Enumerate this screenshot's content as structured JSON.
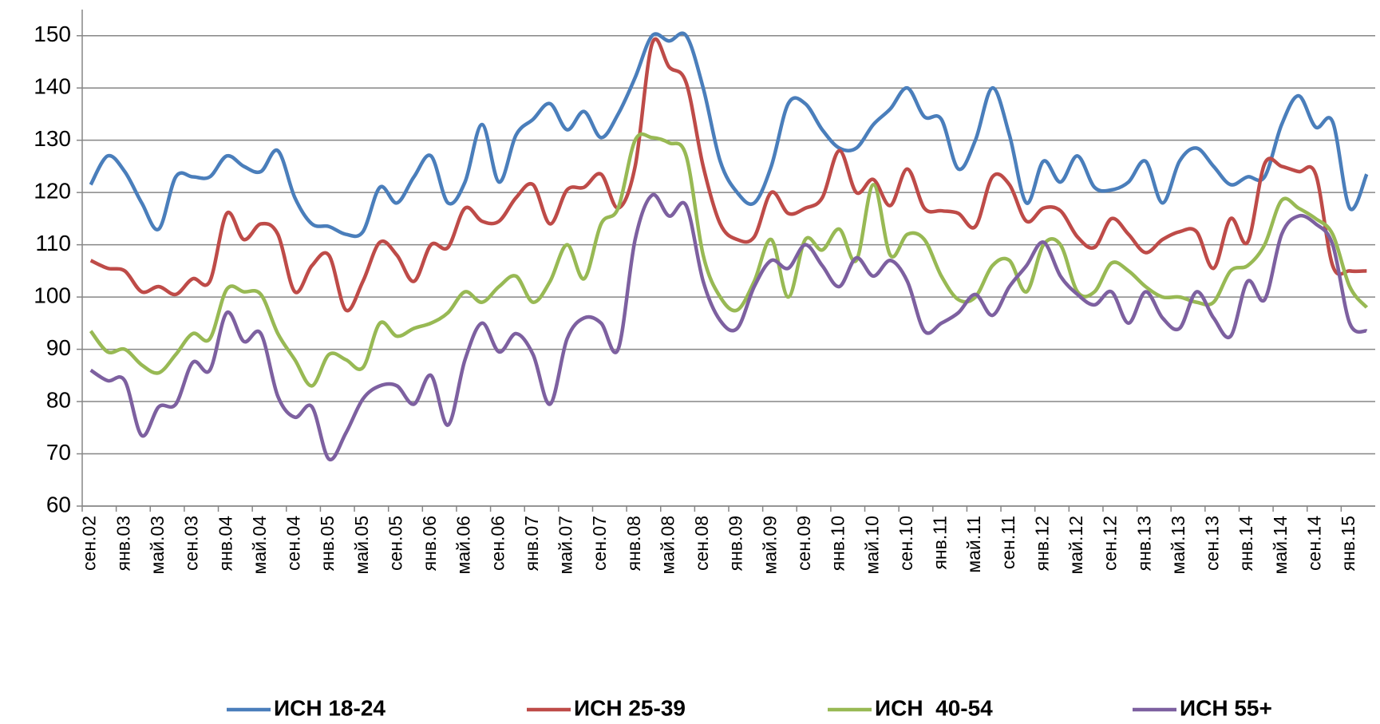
{
  "chart_data": {
    "type": "line",
    "categories": [
      "сен.02",
      null,
      "янв.03",
      null,
      "май.03",
      null,
      "сен.03",
      null,
      "янв.04",
      null,
      "май.04",
      null,
      "сен.04",
      null,
      "янв.05",
      null,
      "май.05",
      null,
      "сен.05",
      null,
      "янв.06",
      null,
      "май.06",
      null,
      "сен.06",
      null,
      "янв.07",
      null,
      "май.07",
      null,
      "сен.07",
      null,
      "янв.08",
      null,
      "май.08",
      null,
      "сен.08",
      null,
      "янв.09",
      null,
      "май.09",
      null,
      "сен.09",
      null,
      "янв.10",
      null,
      "май.10",
      null,
      "сен.10",
      null,
      "янв.11",
      null,
      "май.11",
      null,
      "сен.11",
      null,
      "янв.12",
      null,
      "май.12",
      null,
      "сен.12",
      null,
      "янв.13",
      null,
      "май.13",
      null,
      "сен.13",
      null,
      "янв.14",
      null,
      "май.14",
      null,
      "сен.14",
      null,
      "янв.15",
      null
    ],
    "series": [
      {
        "name": "ИСН 18-24",
        "color": "#4a7ebb",
        "values": [
          121.5,
          127,
          124,
          118,
          113,
          123,
          123,
          123,
          127,
          125,
          124,
          128,
          119,
          114,
          113.5,
          112,
          112.5,
          121,
          118,
          123,
          127,
          118,
          122,
          133,
          122,
          131,
          134,
          137,
          132,
          135.5,
          130.5,
          135,
          142,
          150,
          149,
          150,
          140,
          126,
          120,
          118,
          125,
          137,
          137,
          132,
          128.5,
          128.5,
          133,
          136,
          140,
          134.5,
          134,
          124.5,
          130,
          140,
          131,
          118,
          126,
          122,
          127,
          121,
          120.5,
          122,
          126,
          118,
          126,
          128.5,
          125,
          121.5,
          123,
          123,
          133,
          138.5,
          132.5,
          133.5,
          117,
          123.5
        ]
      },
      {
        "name": "ИСН 25-39",
        "color": "#be4b48",
        "values": [
          107,
          105.5,
          105,
          101,
          102,
          100.5,
          103.5,
          103,
          116,
          111,
          114,
          112,
          101,
          106,
          108,
          97.5,
          103,
          110.5,
          108,
          103,
          110,
          109.5,
          117,
          114.5,
          114.5,
          119,
          121.5,
          114,
          120.5,
          121,
          123.5,
          117,
          125,
          148.5,
          144,
          141,
          125,
          114,
          111,
          111.5,
          120,
          116,
          117,
          119,
          128,
          120,
          122.5,
          117.5,
          124.5,
          117,
          116.5,
          116,
          113.5,
          123,
          121.5,
          114.5,
          117,
          116.5,
          111.5,
          109.5,
          115,
          112,
          108.5,
          111,
          112.5,
          112.5,
          105.5,
          115,
          110.5,
          125.5,
          125,
          124,
          123.5,
          106,
          105,
          105
        ]
      },
      {
        "name": "ИСН  40-54",
        "color": "#98b954",
        "values": [
          93.5,
          89.5,
          90,
          87,
          85.5,
          89,
          93,
          92,
          101.5,
          101,
          100.5,
          93,
          88,
          83,
          89,
          88,
          86.5,
          95,
          92.5,
          94,
          95,
          97,
          101,
          99,
          102,
          104,
          99,
          103,
          110,
          103.5,
          114,
          117,
          130,
          130.5,
          129.5,
          127,
          108,
          100,
          97.5,
          103,
          111,
          100,
          111,
          109,
          113,
          107,
          121.5,
          108,
          112,
          111,
          104,
          99.5,
          100,
          106,
          107,
          101,
          110,
          110,
          101,
          101,
          106.5,
          105,
          102,
          100,
          100,
          99,
          99,
          105,
          106,
          110,
          118.5,
          117,
          115,
          112,
          102,
          98
        ]
      },
      {
        "name": "ИСН 55+",
        "color": "#7d60a0",
        "values": [
          86,
          84,
          84,
          73.5,
          79,
          79.5,
          87.5,
          86,
          97,
          91.5,
          93,
          81,
          77,
          79,
          69,
          74,
          80.5,
          83,
          83,
          79.5,
          85,
          75.5,
          88,
          95,
          89.5,
          93,
          89,
          79.5,
          92,
          96,
          95,
          90,
          111,
          119.5,
          115.5,
          117.5,
          103,
          95.5,
          94,
          102,
          107,
          105.5,
          110,
          106,
          102,
          107.5,
          104,
          107,
          103,
          93.5,
          95,
          97,
          100.5,
          96.5,
          102,
          106,
          110.5,
          104,
          100.5,
          98.5,
          101,
          95,
          101,
          96,
          94,
          101,
          96,
          92.5,
          103,
          99.5,
          112,
          115.5,
          114,
          110,
          95,
          93.5
        ]
      }
    ],
    "ylim": [
      60,
      155
    ],
    "yticks": [
      60,
      70,
      80,
      90,
      100,
      110,
      120,
      130,
      140,
      150
    ],
    "grid": true,
    "legend": "bottom"
  }
}
